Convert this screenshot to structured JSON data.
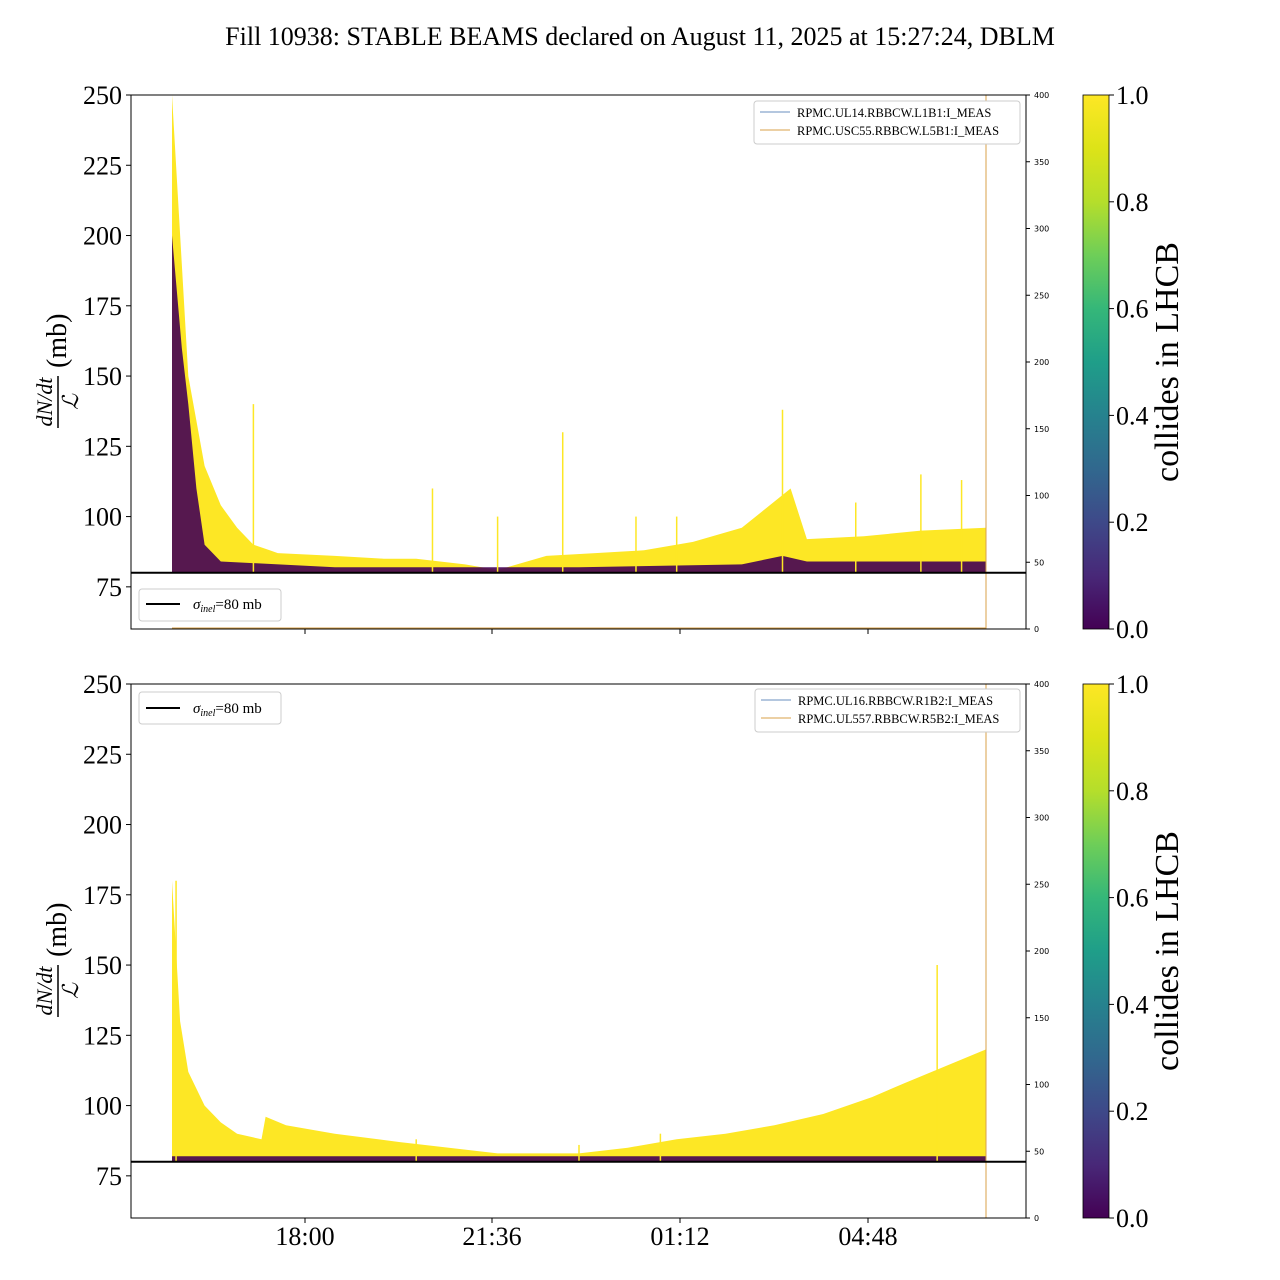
{
  "title": "Fill 10938: STABLE BEAMS declared on August 11, 2025 at 15:27:24, DBLM",
  "colors": {
    "yellow": "#fde725",
    "purple": "#440154",
    "blue_line": "#6a8fbf",
    "orange_line": "#d8a24a",
    "black": "#000000"
  },
  "chart_data": [
    {
      "type": "scatter",
      "panel": "top",
      "ylabel_num": "dN/dt",
      "ylabel_den": "ℒ",
      "ylabel_unit": "(mb)",
      "ylim": [
        60,
        250
      ],
      "yticks": [
        75,
        100,
        125,
        150,
        175,
        200,
        225,
        250
      ],
      "y2lim": [
        0,
        400
      ],
      "y2ticks": [
        0,
        50,
        100,
        150,
        200,
        250,
        300,
        350,
        400
      ],
      "xticks": [
        "18:00",
        "21:36",
        "01:12",
        "04:48"
      ],
      "show_xtick_labels": false,
      "hline": {
        "value": 80,
        "label_sym": "σ",
        "label_sub": "inel",
        "label_rest": "=80 mb",
        "legend": "bottom-left"
      },
      "legend": {
        "placement": "top-right",
        "entries": [
          "RPMC.UL14.RBBCW.L1B1:I_MEAS",
          "RPMC.USC55.RBBCW.L5B1:I_MEAS"
        ]
      },
      "colorbar": {
        "label": "collides in LHCB",
        "range": [
          0,
          1
        ],
        "ticks": [
          "0.0",
          "0.2",
          "0.4",
          "0.6",
          "0.8",
          "1.0"
        ]
      },
      "yellow_upper_envelope": [
        [
          0.0,
          250
        ],
        [
          0.02,
          150
        ],
        [
          0.04,
          118
        ],
        [
          0.06,
          104
        ],
        [
          0.08,
          96
        ],
        [
          0.1,
          90
        ],
        [
          0.12,
          88
        ],
        [
          0.13,
          87
        ],
        [
          0.2,
          86
        ],
        [
          0.26,
          85
        ],
        [
          0.3,
          85
        ],
        [
          0.36,
          83
        ],
        [
          0.4,
          81
        ],
        [
          0.46,
          86
        ],
        [
          0.52,
          87
        ],
        [
          0.58,
          88
        ],
        [
          0.64,
          91
        ],
        [
          0.7,
          96
        ],
        [
          0.76,
          110
        ],
        [
          0.78,
          92
        ],
        [
          0.85,
          93
        ],
        [
          0.92,
          95
        ],
        [
          1.0,
          96
        ]
      ],
      "purple_upper_envelope": [
        [
          0.0,
          200
        ],
        [
          0.012,
          160
        ],
        [
          0.02,
          140
        ],
        [
          0.03,
          110
        ],
        [
          0.04,
          90
        ],
        [
          0.06,
          84
        ],
        [
          0.2,
          82
        ],
        [
          0.5,
          82
        ],
        [
          0.7,
          83
        ],
        [
          0.75,
          86
        ],
        [
          0.78,
          84
        ],
        [
          1.0,
          84
        ]
      ],
      "spikes": [
        [
          0.1,
          140
        ],
        [
          0.32,
          110
        ],
        [
          0.4,
          100
        ],
        [
          0.48,
          130
        ],
        [
          0.57,
          100
        ],
        [
          0.62,
          100
        ],
        [
          0.75,
          138
        ],
        [
          0.84,
          105
        ],
        [
          0.92,
          115
        ],
        [
          0.97,
          113
        ]
      ]
    },
    {
      "type": "scatter",
      "panel": "bottom",
      "ylabel_num": "dN/dt",
      "ylabel_den": "ℒ",
      "ylabel_unit": "(mb)",
      "ylim": [
        60,
        250
      ],
      "yticks": [
        75,
        100,
        125,
        150,
        175,
        200,
        225,
        250
      ],
      "y2lim": [
        0,
        400
      ],
      "y2ticks": [
        0,
        50,
        100,
        150,
        200,
        250,
        300,
        350,
        400
      ],
      "xticks": [
        "18:00",
        "21:36",
        "01:12",
        "04:48"
      ],
      "show_xtick_labels": true,
      "hline": {
        "value": 80,
        "label_sym": "σ",
        "label_sub": "inel",
        "label_rest": "=80 mb",
        "legend": "top-left"
      },
      "legend": {
        "placement": "top-right",
        "entries": [
          "RPMC.UL16.RBBCW.R1B2:I_MEAS",
          "RPMC.UL557.RBBCW.R5B2:I_MEAS"
        ]
      },
      "colorbar": {
        "label": "collides in LHCB",
        "range": [
          0,
          1
        ],
        "ticks": [
          "0.0",
          "0.2",
          "0.4",
          "0.6",
          "0.8",
          "1.0"
        ]
      },
      "yellow_upper_envelope": [
        [
          0.0,
          180
        ],
        [
          0.01,
          130
        ],
        [
          0.02,
          112
        ],
        [
          0.04,
          100
        ],
        [
          0.06,
          94
        ],
        [
          0.08,
          90
        ],
        [
          0.11,
          88
        ],
        [
          0.115,
          96
        ],
        [
          0.14,
          93
        ],
        [
          0.2,
          90
        ],
        [
          0.28,
          87
        ],
        [
          0.34,
          85
        ],
        [
          0.4,
          83
        ],
        [
          0.5,
          83
        ],
        [
          0.56,
          85
        ],
        [
          0.62,
          88
        ],
        [
          0.68,
          90
        ],
        [
          0.74,
          93
        ],
        [
          0.8,
          97
        ],
        [
          0.86,
          103
        ],
        [
          0.9,
          108
        ],
        [
          0.95,
          114
        ],
        [
          1.0,
          120
        ]
      ],
      "purple_upper_envelope": [
        [
          0.0,
          82
        ],
        [
          1.0,
          82
        ]
      ],
      "spikes": [
        [
          0.005,
          180
        ],
        [
          0.3,
          88
        ],
        [
          0.5,
          86
        ],
        [
          0.6,
          90
        ],
        [
          0.94,
          150
        ]
      ]
    }
  ]
}
